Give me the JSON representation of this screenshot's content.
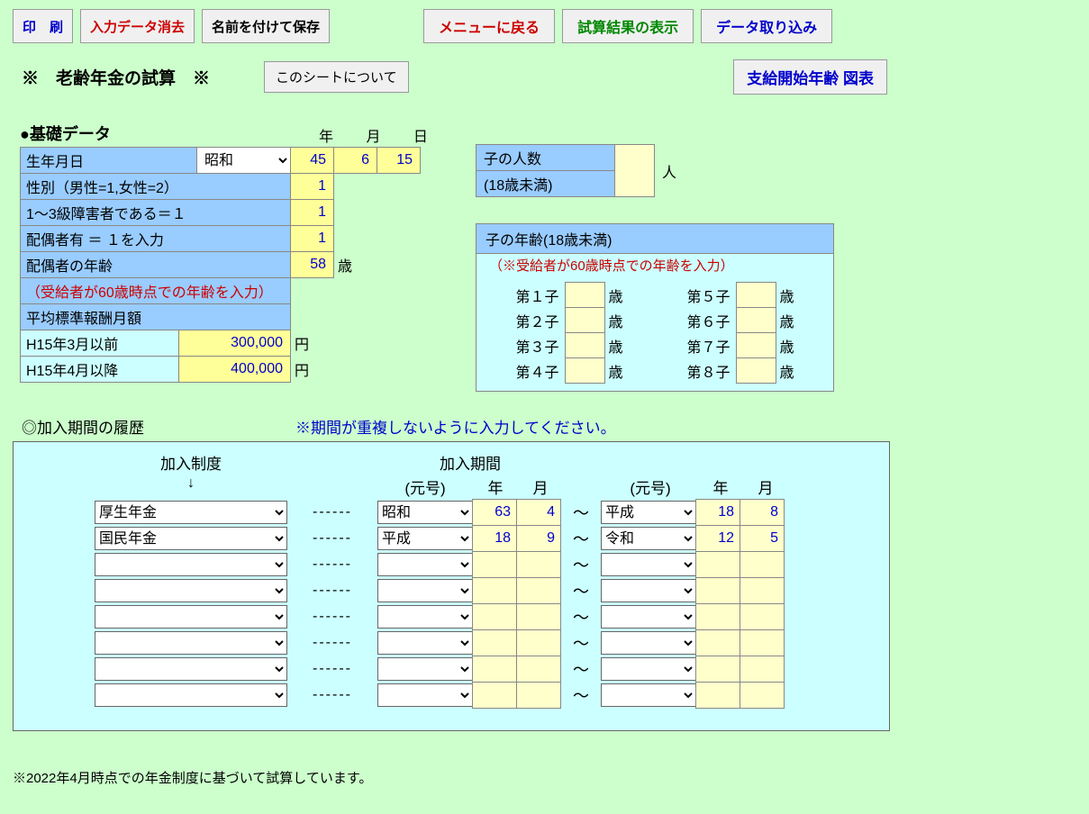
{
  "toolbar": {
    "print": "印　刷",
    "clear": "入力データ消去",
    "saveAs": "名前を付けて保存",
    "backMenu": "メニューに戻る",
    "showResult": "試算結果の表示",
    "importData": "データ取り込み"
  },
  "title": "※　老齢年金の試算　※",
  "aboutSheet": "このシートについて",
  "chartBtn": "支給開始年齢 図表",
  "sectionBasic": "●基礎データ",
  "ymd": {
    "y": "年",
    "m": "月",
    "d": "日"
  },
  "basic": {
    "birthLabel": "生年月日",
    "era": "昭和",
    "by": "45",
    "bm": "6",
    "bd": "15",
    "sexLabel": "性別（男性=1,女性=2）",
    "sex": "1",
    "disLabel": "1～3級障害者である＝１",
    "dis": "1",
    "spouseLabel": "配偶者有 ＝ １を入力",
    "spouse": "1",
    "spAgeLabel": "配偶者の年齢",
    "spAge": "58",
    "spAgeUnit": "歳",
    "spNote": "（受給者が60歳時点での年齢を入力）",
    "avgLabel": "平均標準報酬月額",
    "h15beforeLabel": "H15年3月以前",
    "h15before": "300,000",
    "h15afterLabel": "H15年4月以降",
    "h15after": "400,000",
    "yen": "円"
  },
  "children": {
    "countLabel": "子の人数",
    "countSub": "(18歳未満)",
    "count": "",
    "unit": "人",
    "ageHeader": "子の年齢(18歳未満)",
    "ageNote": "（※受給者が60歳時点での年齢を入力）",
    "labels": [
      "第１子",
      "第２子",
      "第３子",
      "第４子",
      "第５子",
      "第６子",
      "第７子",
      "第８子"
    ],
    "unitAge": "歳"
  },
  "history": {
    "header": "◎加入期間の履歴",
    "warn": "※期間が重複しないように入力してください。",
    "colSystem": "加入制度",
    "colPeriod": "加入期間",
    "colEra": "(元号)",
    "colY": "年",
    "colM": "月",
    "arrow": "↓",
    "dash": "------",
    "tilde": "～",
    "rows": [
      {
        "sys": "厚生年金",
        "e1": "昭和",
        "y1": "63",
        "m1": "4",
        "e2": "平成",
        "y2": "18",
        "m2": "8"
      },
      {
        "sys": "国民年金",
        "e1": "平成",
        "y1": "18",
        "m1": "9",
        "e2": "令和",
        "y2": "12",
        "m2": "5"
      },
      {
        "sys": "",
        "e1": "",
        "y1": "",
        "m1": "",
        "e2": "",
        "y2": "",
        "m2": ""
      },
      {
        "sys": "",
        "e1": "",
        "y1": "",
        "m1": "",
        "e2": "",
        "y2": "",
        "m2": ""
      },
      {
        "sys": "",
        "e1": "",
        "y1": "",
        "m1": "",
        "e2": "",
        "y2": "",
        "m2": ""
      },
      {
        "sys": "",
        "e1": "",
        "y1": "",
        "m1": "",
        "e2": "",
        "y2": "",
        "m2": ""
      },
      {
        "sys": "",
        "e1": "",
        "y1": "",
        "m1": "",
        "e2": "",
        "y2": "",
        "m2": ""
      },
      {
        "sys": "",
        "e1": "",
        "y1": "",
        "m1": "",
        "e2": "",
        "y2": "",
        "m2": ""
      }
    ]
  },
  "footer": "※2022年4月時点での年金制度に基づいて試算しています。"
}
